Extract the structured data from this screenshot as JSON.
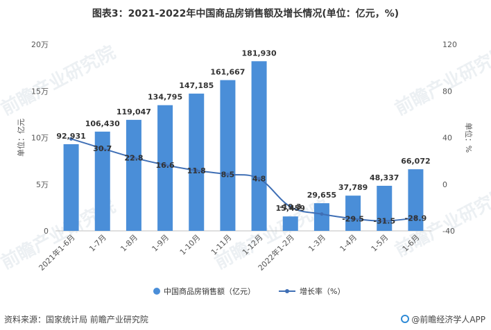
{
  "title": "图表3：2021-2022年中国商品房销售额及增长情况(单位：亿元，%)",
  "source": "资料来源：国家统计局 前瞻产业研究院",
  "credit": "@前瞻经济学人APP",
  "watermark": "前瞻产业研究院",
  "colors": {
    "bar": "#4a8ed8",
    "line": "#3f6fb5",
    "grid": "#e3e3e3",
    "text": "#555555"
  },
  "chart_data": {
    "type": "bar+line",
    "categories": [
      "2021年1-6月",
      "1-7月",
      "1-8月",
      "1-9月",
      "1-10月",
      "1-11月",
      "1-12月",
      "2022年1-2月",
      "1-3月",
      "1-4月",
      "1-5月",
      "1-6月"
    ],
    "series": [
      {
        "name": "中国商品房销售额（亿元）",
        "type": "bar",
        "axis": "left",
        "values": [
          92931,
          106430,
          119047,
          134795,
          147185,
          161667,
          181930,
          15459,
          29655,
          37789,
          48337,
          66072
        ],
        "labels": [
          "92,931",
          "106,430",
          "119,047",
          "134,795",
          "147,185",
          "161,667",
          "181,930",
          "15,459",
          "29,655",
          "37,789",
          "48,337",
          "66,072"
        ]
      },
      {
        "name": "增长率（%）",
        "type": "line",
        "axis": "right",
        "values": [
          38.9,
          30.7,
          22.8,
          16.6,
          11.8,
          8.5,
          4.8,
          -19.3,
          -25.6,
          -29.5,
          -31.5,
          -28.9
        ],
        "labels": [
          "",
          "30.7",
          "22.8",
          "16.6",
          "11.8",
          "8.5",
          "4.8",
          "-19.3",
          "",
          "-29.5",
          "-31.5",
          "-28.9"
        ]
      }
    ],
    "ylabel_left": "单位：亿元",
    "ylabel_right": "单位：%",
    "ylim_left": [
      0,
      200000
    ],
    "ylim_right": [
      -40,
      120
    ],
    "yticks_left": [
      "0",
      "5万",
      "10万",
      "15万",
      "20万"
    ],
    "yticks_right": [
      "-40",
      "0",
      "40",
      "80",
      "120"
    ],
    "grid": false,
    "legend_position": "bottom"
  }
}
